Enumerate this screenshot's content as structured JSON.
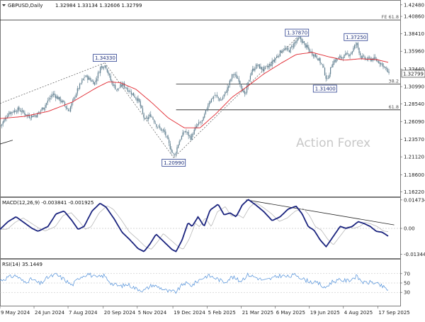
{
  "colors": {
    "candle": "#5f7e8f",
    "ma": "#e0262e",
    "macd": "#1a237e",
    "signal": "#b9b9b9",
    "rsi": "#4f8fd9",
    "price_box": "#1d2f7a"
  },
  "header": {
    "title": "GBPUSD,Daily",
    "ohlc": "1.32984 1.33134 1.32606 1.32799"
  },
  "watermark": "Action Forex",
  "chart_data": [
    {
      "type": "candlestick",
      "title": "GBPUSD,Daily  1.32984 1.33134 1.32606 1.32799",
      "ylim": [
        1.1545,
        1.4306
      ],
      "y_ticks": [
        "1.42480",
        "1.40860",
        "1.38410",
        "1.35960",
        "1.33440",
        "1.30990",
        "1.28540",
        "1.26090",
        "1.23570",
        "1.21120",
        "1.18600",
        "1.16220"
      ],
      "y_tick_values": [
        1.4248,
        1.4086,
        1.3841,
        1.3596,
        1.3344,
        1.3099,
        1.2854,
        1.2609,
        1.2357,
        1.2112,
        1.186,
        1.1622
      ],
      "current_price": "1.32799",
      "ma_label": "",
      "swing_labels": [
        {
          "text": "1.34330",
          "x": 0.262,
          "y": 1.3433
        },
        {
          "text": "1.20990",
          "x": 0.434,
          "y": 1.2099
        },
        {
          "text": "1.37870",
          "x": 0.742,
          "y": 1.3787
        },
        {
          "text": "1.31400",
          "x": 0.812,
          "y": 1.314
        },
        {
          "text": "1.37250",
          "x": 0.889,
          "y": 1.3725
        }
      ],
      "fib_levels": [
        {
          "label": "FE 61.8",
          "y": 1.4036,
          "x_start": 0.0
        },
        {
          "label": "38.2",
          "y": 1.3135,
          "x_start": 0.44
        },
        {
          "label": "61.8",
          "y": 1.2773,
          "x_start": 0.44
        }
      ],
      "trend_lines": [
        {
          "x1": 0.0,
          "y1": 1.2862,
          "x2": 0.262,
          "y2": 1.3433
        },
        {
          "x1": 0.262,
          "y1": 1.3433,
          "x2": 0.434,
          "y2": 1.2099
        },
        {
          "x1": 0.434,
          "y1": 1.2099,
          "x2": 0.742,
          "y2": 1.3787
        }
      ],
      "anchors_close": [
        [
          0.0,
          1.255
        ],
        [
          0.02,
          1.273
        ],
        [
          0.045,
          1.278
        ],
        [
          0.07,
          1.268
        ],
        [
          0.09,
          1.27
        ],
        [
          0.11,
          1.283
        ],
        [
          0.13,
          1.3
        ],
        [
          0.155,
          1.288
        ],
        [
          0.17,
          1.275
        ],
        [
          0.19,
          1.303
        ],
        [
          0.21,
          1.325
        ],
        [
          0.235,
          1.315
        ],
        [
          0.25,
          1.338
        ],
        [
          0.262,
          1.34
        ],
        [
          0.275,
          1.318
        ],
        [
          0.29,
          1.305
        ],
        [
          0.305,
          1.313
        ],
        [
          0.325,
          1.302
        ],
        [
          0.345,
          1.29
        ],
        [
          0.36,
          1.262
        ],
        [
          0.375,
          1.27
        ],
        [
          0.39,
          1.255
        ],
        [
          0.41,
          1.245
        ],
        [
          0.425,
          1.222
        ],
        [
          0.434,
          1.212
        ],
        [
          0.445,
          1.232
        ],
        [
          0.46,
          1.248
        ],
        [
          0.475,
          1.238
        ],
        [
          0.49,
          1.255
        ],
        [
          0.505,
          1.262
        ],
        [
          0.52,
          1.288
        ],
        [
          0.535,
          1.298
        ],
        [
          0.55,
          1.29
        ],
        [
          0.565,
          1.305
        ],
        [
          0.58,
          1.328
        ],
        [
          0.595,
          1.32
        ],
        [
          0.61,
          1.296
        ],
        [
          0.625,
          1.33
        ],
        [
          0.64,
          1.34
        ],
        [
          0.655,
          1.334
        ],
        [
          0.67,
          1.338
        ],
        [
          0.69,
          1.352
        ],
        [
          0.705,
          1.363
        ],
        [
          0.72,
          1.36
        ],
        [
          0.735,
          1.372
        ],
        [
          0.748,
          1.378
        ],
        [
          0.76,
          1.368
        ],
        [
          0.775,
          1.358
        ],
        [
          0.79,
          1.352
        ],
        [
          0.805,
          1.338
        ],
        [
          0.815,
          1.318
        ],
        [
          0.83,
          1.345
        ],
        [
          0.845,
          1.35
        ],
        [
          0.86,
          1.353
        ],
        [
          0.875,
          1.357
        ],
        [
          0.889,
          1.371
        ],
        [
          0.9,
          1.352
        ],
        [
          0.915,
          1.348
        ],
        [
          0.93,
          1.349
        ],
        [
          0.945,
          1.345
        ],
        [
          0.955,
          1.3405
        ],
        [
          0.97,
          1.328
        ]
      ],
      "anchors_ma": [
        [
          0.0,
          1.265
        ],
        [
          0.06,
          1.268
        ],
        [
          0.12,
          1.275
        ],
        [
          0.18,
          1.288
        ],
        [
          0.24,
          1.308
        ],
        [
          0.27,
          1.3165
        ],
        [
          0.3,
          1.3155
        ],
        [
          0.34,
          1.306
        ],
        [
          0.38,
          1.287
        ],
        [
          0.42,
          1.266
        ],
        [
          0.46,
          1.252
        ],
        [
          0.5,
          1.252
        ],
        [
          0.54,
          1.272
        ],
        [
          0.58,
          1.295
        ],
        [
          0.62,
          1.311
        ],
        [
          0.66,
          1.328
        ],
        [
          0.7,
          1.342
        ],
        [
          0.74,
          1.355
        ],
        [
          0.78,
          1.358
        ],
        [
          0.82,
          1.352
        ],
        [
          0.86,
          1.347
        ],
        [
          0.9,
          1.349
        ],
        [
          0.94,
          1.348
        ],
        [
          0.97,
          1.344
        ]
      ]
    },
    {
      "type": "line",
      "title": "MACD(12,26,9) -0.003841 -0.001925",
      "ylim": [
        -0.0158,
        0.0158
      ],
      "y_ticks": [
        "0.014734",
        "0.00",
        "-0.013442"
      ],
      "y_tick_values": [
        0.014734,
        0.0,
        -0.013442
      ],
      "trend_line": {
        "x1": 0.615,
        "y1": 0.0148,
        "x2": 0.985,
        "y2": 0.0018
      },
      "anchors_macd": [
        [
          0.0,
          -0.0005
        ],
        [
          0.02,
          0.0035
        ],
        [
          0.04,
          0.006
        ],
        [
          0.06,
          0.003
        ],
        [
          0.08,
          0.0
        ],
        [
          0.095,
          -0.0015
        ],
        [
          0.12,
          0.001
        ],
        [
          0.14,
          0.0075
        ],
        [
          0.16,
          0.009
        ],
        [
          0.18,
          0.004
        ],
        [
          0.195,
          -0.0005
        ],
        [
          0.21,
          0.001
        ],
        [
          0.23,
          0.009
        ],
        [
          0.25,
          0.013
        ],
        [
          0.265,
          0.011
        ],
        [
          0.285,
          0.005
        ],
        [
          0.305,
          -0.002
        ],
        [
          0.325,
          -0.006
        ],
        [
          0.345,
          -0.0105
        ],
        [
          0.36,
          -0.012
        ],
        [
          0.375,
          -0.008
        ],
        [
          0.39,
          -0.003
        ],
        [
          0.41,
          -0.007
        ],
        [
          0.43,
          -0.011
        ],
        [
          0.44,
          -0.012
        ],
        [
          0.455,
          -0.006
        ],
        [
          0.47,
          0.003
        ],
        [
          0.48,
          0.001
        ],
        [
          0.495,
          0.006
        ],
        [
          0.51,
          0.001
        ],
        [
          0.525,
          0.0095
        ],
        [
          0.545,
          0.0125
        ],
        [
          0.56,
          0.007
        ],
        [
          0.575,
          0.008
        ],
        [
          0.59,
          0.006
        ],
        [
          0.605,
          0.012
        ],
        [
          0.62,
          0.015
        ],
        [
          0.64,
          0.012
        ],
        [
          0.66,
          0.0085
        ],
        [
          0.68,
          0.004
        ],
        [
          0.7,
          0.006
        ],
        [
          0.72,
          0.01
        ],
        [
          0.74,
          0.0115
        ],
        [
          0.755,
          0.0075
        ],
        [
          0.77,
          0.001
        ],
        [
          0.785,
          -0.001
        ],
        [
          0.8,
          -0.006
        ],
        [
          0.815,
          -0.0095
        ],
        [
          0.83,
          -0.005
        ],
        [
          0.85,
          0.001
        ],
        [
          0.865,
          0.0
        ],
        [
          0.88,
          0.001
        ],
        [
          0.895,
          0.0035
        ],
        [
          0.91,
          0.0025
        ],
        [
          0.925,
          0.001
        ],
        [
          0.94,
          -0.0015
        ],
        [
          0.955,
          -0.002
        ],
        [
          0.97,
          -0.004
        ]
      ]
    },
    {
      "type": "line",
      "title": "RSI(14) 35.1449",
      "ylim": [
        0,
        100
      ],
      "y_ticks": [
        "70",
        "50",
        "30"
      ],
      "y_tick_values": [
        70,
        50,
        30
      ],
      "anchors_rsi": [
        [
          0.0,
          55
        ],
        [
          0.02,
          62
        ],
        [
          0.04,
          66
        ],
        [
          0.06,
          52
        ],
        [
          0.08,
          58
        ],
        [
          0.1,
          48
        ],
        [
          0.12,
          62
        ],
        [
          0.14,
          68
        ],
        [
          0.16,
          58
        ],
        [
          0.18,
          45
        ],
        [
          0.2,
          63
        ],
        [
          0.22,
          70
        ],
        [
          0.24,
          61
        ],
        [
          0.26,
          66
        ],
        [
          0.28,
          48
        ],
        [
          0.3,
          43
        ],
        [
          0.32,
          47
        ],
        [
          0.34,
          38
        ],
        [
          0.36,
          34
        ],
        [
          0.38,
          46
        ],
        [
          0.4,
          40
        ],
        [
          0.42,
          32
        ],
        [
          0.44,
          31
        ],
        [
          0.46,
          50
        ],
        [
          0.48,
          45
        ],
        [
          0.5,
          58
        ],
        [
          0.52,
          66
        ],
        [
          0.54,
          60
        ],
        [
          0.56,
          52
        ],
        [
          0.58,
          63
        ],
        [
          0.6,
          54
        ],
        [
          0.62,
          68
        ],
        [
          0.64,
          62
        ],
        [
          0.66,
          55
        ],
        [
          0.68,
          60
        ],
        [
          0.7,
          66
        ],
        [
          0.72,
          63
        ],
        [
          0.74,
          68
        ],
        [
          0.76,
          57
        ],
        [
          0.78,
          52
        ],
        [
          0.8,
          48
        ],
        [
          0.81,
          38
        ],
        [
          0.83,
          53
        ],
        [
          0.85,
          56
        ],
        [
          0.87,
          55
        ],
        [
          0.89,
          64
        ],
        [
          0.91,
          50
        ],
        [
          0.93,
          52
        ],
        [
          0.95,
          45
        ],
        [
          0.97,
          35
        ]
      ]
    }
  ],
  "x_axis": {
    "labels": [
      "9 May 2024",
      "24 Jun 2024",
      "7 Aug 2024",
      "20 Sep 2024",
      "5 Nov 2024",
      "19 Dec 2024",
      "5 Feb 2025",
      "21 Mar 2025",
      "6 May 2025",
      "19 Jun 2025",
      "4 Aug 2025",
      "17 Sep 2025"
    ],
    "positions": [
      0.0,
      0.085,
      0.17,
      0.258,
      0.343,
      0.432,
      0.518,
      0.603,
      0.688,
      0.773,
      0.858,
      0.944
    ]
  }
}
